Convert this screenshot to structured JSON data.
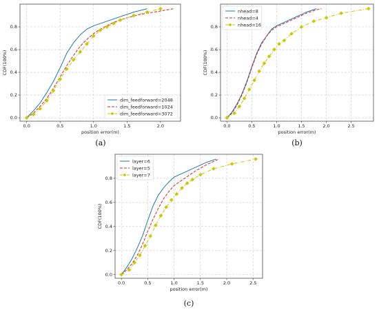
{
  "chart_data": [
    {
      "type": "line",
      "caption": "(a)",
      "xlabel": "position error(m)",
      "ylabel": "CDF(100%)",
      "xlim": [
        -0.1,
        2.3
      ],
      "ylim": [
        -0.03,
        1.0
      ],
      "xticks": [
        "0.0",
        "0.5",
        "1.0",
        "1.5",
        "2.0"
      ],
      "yticks": [
        "0.0",
        "0.2",
        "0.4",
        "0.6",
        "0.8"
      ],
      "grid": true,
      "legend": "bottom-right",
      "series": [
        {
          "name": "dim_feedforward=2048",
          "color": "#1f77b4",
          "style": "solid",
          "x": [
            0,
            0.1,
            0.2,
            0.3,
            0.4,
            0.5,
            0.6,
            0.7,
            0.8,
            0.9,
            1.0,
            1.2,
            1.4,
            1.6,
            1.8
          ],
          "y": [
            0,
            0.06,
            0.13,
            0.22,
            0.32,
            0.44,
            0.57,
            0.66,
            0.73,
            0.78,
            0.81,
            0.85,
            0.89,
            0.93,
            0.96
          ]
        },
        {
          "name": "dim_feedforward=1024",
          "color": "#d62728",
          "style": "dashed",
          "x": [
            0,
            0.1,
            0.2,
            0.3,
            0.4,
            0.5,
            0.6,
            0.7,
            0.8,
            0.9,
            1.0,
            1.1,
            1.3,
            1.5,
            1.7,
            1.9,
            2.1,
            2.2
          ],
          "y": [
            0,
            0.04,
            0.1,
            0.17,
            0.26,
            0.36,
            0.46,
            0.55,
            0.63,
            0.69,
            0.74,
            0.78,
            0.84,
            0.88,
            0.91,
            0.93,
            0.95,
            0.96
          ]
        },
        {
          "name": "dim_feedforward=3072",
          "color": "#c8c800",
          "style": "dashdot",
          "marker": "diamond",
          "x": [
            0,
            0.1,
            0.2,
            0.3,
            0.4,
            0.5,
            0.6,
            0.7,
            0.8,
            0.9,
            1.0,
            1.1,
            1.2,
            1.3,
            1.4,
            1.6,
            1.8,
            2.0
          ],
          "y": [
            0,
            0.03,
            0.08,
            0.15,
            0.24,
            0.34,
            0.43,
            0.51,
            0.58,
            0.65,
            0.72,
            0.77,
            0.8,
            0.83,
            0.86,
            0.9,
            0.93,
            0.96
          ]
        }
      ]
    },
    {
      "type": "line",
      "caption": "(b)",
      "xlabel": "position error(m)",
      "ylabel": "CDF(100%)",
      "xlim": [
        -0.13,
        2.95
      ],
      "ylim": [
        -0.03,
        1.0
      ],
      "xticks": [
        "0.0",
        "0.5",
        "1.0",
        "1.5",
        "2.0",
        "2.5"
      ],
      "yticks": [
        "0.0",
        "0.2",
        "0.4",
        "0.6",
        "0.8"
      ],
      "grid": true,
      "legend": "top-left",
      "series": [
        {
          "name": "nhead=8",
          "color": "#1f77b4",
          "style": "solid",
          "x": [
            0,
            0.1,
            0.2,
            0.3,
            0.4,
            0.5,
            0.6,
            0.7,
            0.8,
            0.9,
            1.0,
            1.2,
            1.4,
            1.6,
            1.8
          ],
          "y": [
            0,
            0.05,
            0.12,
            0.21,
            0.32,
            0.45,
            0.57,
            0.66,
            0.72,
            0.78,
            0.81,
            0.85,
            0.89,
            0.93,
            0.96
          ]
        },
        {
          "name": "nhead=4",
          "color": "#d62728",
          "style": "dashed",
          "x": [
            0,
            0.1,
            0.2,
            0.3,
            0.4,
            0.5,
            0.6,
            0.7,
            0.8,
            0.9,
            1.0,
            1.2,
            1.4,
            1.6,
            1.8,
            1.9
          ],
          "y": [
            0,
            0.04,
            0.11,
            0.2,
            0.31,
            0.44,
            0.56,
            0.65,
            0.72,
            0.77,
            0.8,
            0.84,
            0.88,
            0.92,
            0.95,
            0.96
          ]
        },
        {
          "name": "nhead=16",
          "color": "#c8c800",
          "style": "dashdot",
          "marker": "diamond",
          "x": [
            0,
            0.15,
            0.25,
            0.35,
            0.45,
            0.55,
            0.65,
            0.75,
            0.85,
            0.95,
            1.05,
            1.15,
            1.3,
            1.5,
            1.75,
            2.0,
            2.3,
            2.85
          ],
          "y": [
            0,
            0.04,
            0.1,
            0.17,
            0.25,
            0.33,
            0.41,
            0.48,
            0.54,
            0.6,
            0.65,
            0.68,
            0.74,
            0.8,
            0.85,
            0.88,
            0.92,
            0.96
          ]
        }
      ]
    },
    {
      "type": "line",
      "caption": "(c)",
      "xlabel": "position error(m)",
      "ylabel": "CDF(100%)",
      "xlim": [
        -0.12,
        2.68
      ],
      "ylim": [
        -0.03,
        1.0
      ],
      "xticks": [
        "0.0",
        "0.5",
        "1.0",
        "1.5",
        "2.0",
        "2.5"
      ],
      "yticks": [
        "0.0",
        "0.2",
        "0.4",
        "0.6",
        "0.8"
      ],
      "grid": true,
      "legend": "top-left",
      "series": [
        {
          "name": "layer=6",
          "color": "#1f77b4",
          "style": "solid",
          "x": [
            0,
            0.1,
            0.2,
            0.3,
            0.4,
            0.5,
            0.6,
            0.7,
            0.8,
            0.9,
            1.0,
            1.2,
            1.4,
            1.6,
            1.8
          ],
          "y": [
            0,
            0.06,
            0.13,
            0.22,
            0.32,
            0.45,
            0.57,
            0.66,
            0.72,
            0.77,
            0.81,
            0.85,
            0.89,
            0.93,
            0.96
          ]
        },
        {
          "name": "layer=5",
          "color": "#d62728",
          "style": "dashed",
          "x": [
            0,
            0.1,
            0.2,
            0.3,
            0.4,
            0.5,
            0.6,
            0.7,
            0.8,
            0.9,
            1.0,
            1.2,
            1.4,
            1.6,
            1.85
          ],
          "y": [
            0,
            0.04,
            0.09,
            0.16,
            0.25,
            0.36,
            0.46,
            0.55,
            0.63,
            0.69,
            0.74,
            0.8,
            0.86,
            0.91,
            0.96
          ]
        },
        {
          "name": "layer=7",
          "color": "#c8c800",
          "style": "dashdot",
          "marker": "diamond",
          "x": [
            0,
            0.15,
            0.25,
            0.35,
            0.45,
            0.55,
            0.65,
            0.75,
            0.85,
            0.95,
            1.05,
            1.15,
            1.25,
            1.35,
            1.5,
            1.75,
            2.1,
            2.55
          ],
          "y": [
            0,
            0.04,
            0.1,
            0.16,
            0.24,
            0.32,
            0.41,
            0.49,
            0.56,
            0.62,
            0.67,
            0.72,
            0.76,
            0.79,
            0.83,
            0.88,
            0.92,
            0.96
          ]
        }
      ]
    }
  ]
}
